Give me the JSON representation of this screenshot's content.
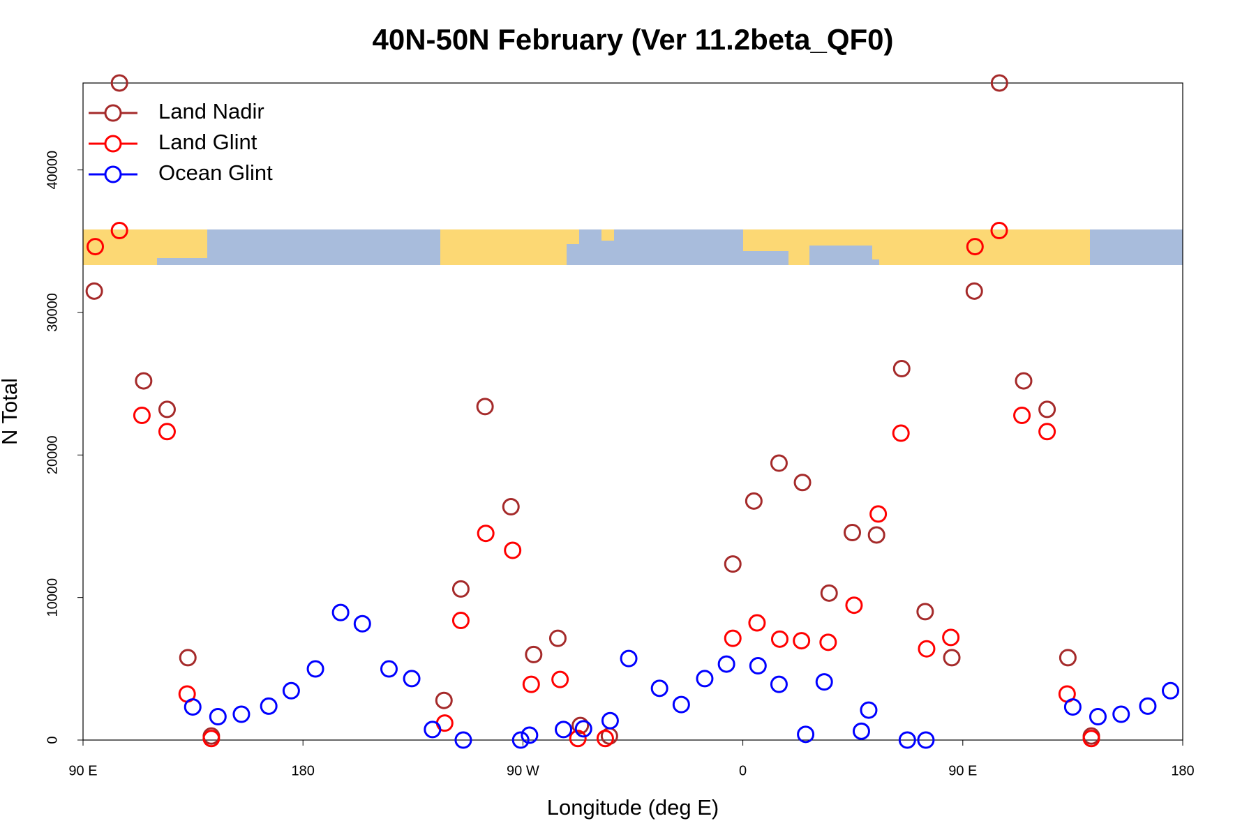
{
  "chart_data": {
    "type": "scatter",
    "title": "40N-50N February (Ver 11.2beta_QF0)",
    "x_label": "Longitude (deg E)",
    "y_label": "N Total",
    "xlim": [
      90,
      540
    ],
    "ylim": [
      0,
      46100
    ],
    "xticks": [
      {
        "value": 90,
        "label": "90 E"
      },
      180,
      {
        "value": 270,
        "label": "90 W"
      },
      {
        "value": 360,
        "label": "0"
      },
      {
        "value": 450,
        "label": "90 E"
      },
      {
        "value": 540,
        "label": "180"
      }
    ],
    "yticks": [
      0,
      10000,
      20000,
      30000,
      40000
    ],
    "legend": "top-left",
    "series": [
      {
        "name": "Land Nadir",
        "color": "#a52a2a",
        "x": [
          94.6,
          104.9,
          114.8,
          124.4,
          132.9,
          142.5,
          237.7,
          244.6,
          254.5,
          265.1,
          274.4,
          284.3,
          293.5,
          305.4,
          355.9,
          364.5,
          374.8,
          384.4,
          395.3,
          404.8,
          414.7,
          425.0,
          434.6,
          445.5,
          454.7,
          465.0,
          474.9,
          484.5,
          493.0,
          502.6
        ],
        "values": [
          31500,
          46100,
          25200,
          23200,
          5780,
          280,
          2780,
          10600,
          23400,
          16370,
          6000,
          7140,
          1020,
          280,
          12350,
          16770,
          19430,
          18070,
          10310,
          14560,
          14390,
          26060,
          9010,
          5780,
          31500,
          46100,
          25200,
          23200,
          5780,
          280
        ]
      },
      {
        "name": "Land Glint",
        "color": "#ff0000",
        "x": [
          95.0,
          104.9,
          114.1,
          124.4,
          132.6,
          142.5,
          238.0,
          244.6,
          254.8,
          265.8,
          273.4,
          285.2,
          292.5,
          303.7,
          355.9,
          365.8,
          375.1,
          384.0,
          394.9,
          405.5,
          415.4,
          424.7,
          435.2,
          445.1,
          455.0,
          464.9,
          474.2,
          484.5,
          492.7,
          502.6
        ],
        "values": [
          34620,
          35750,
          22780,
          21640,
          3230,
          110,
          1190,
          8390,
          14500,
          13310,
          3910,
          4250,
          110,
          110,
          7140,
          8220,
          7080,
          6970,
          6860,
          9460,
          15860,
          21530,
          6400,
          7200,
          34620,
          35750,
          22780,
          21640,
          3230,
          110
        ]
      },
      {
        "name": "Ocean Glint",
        "color": "#0000ff",
        "x": [
          134.9,
          145.2,
          154.8,
          166.0,
          175.2,
          185.1,
          195.4,
          204.3,
          215.2,
          224.5,
          233.0,
          245.6,
          269.1,
          272.7,
          286.6,
          294.8,
          305.7,
          313.3,
          325.9,
          334.8,
          344.4,
          353.3,
          366.2,
          374.8,
          385.7,
          393.3,
          408.5,
          411.5,
          427.3,
          434.9,
          495.0,
          505.3,
          514.8,
          525.7,
          535.0
        ],
        "values": [
          2320,
          1640,
          1810,
          2380,
          3460,
          4990,
          8950,
          8160,
          4990,
          4310,
          740,
          0,
          0,
          340,
          740,
          790,
          1360,
          5720,
          3630,
          2490,
          4310,
          5330,
          5210,
          3910,
          400,
          4080,
          620,
          2100,
          0,
          0,
          2320,
          1640,
          1810,
          2380,
          3460
        ]
      }
    ]
  }
}
